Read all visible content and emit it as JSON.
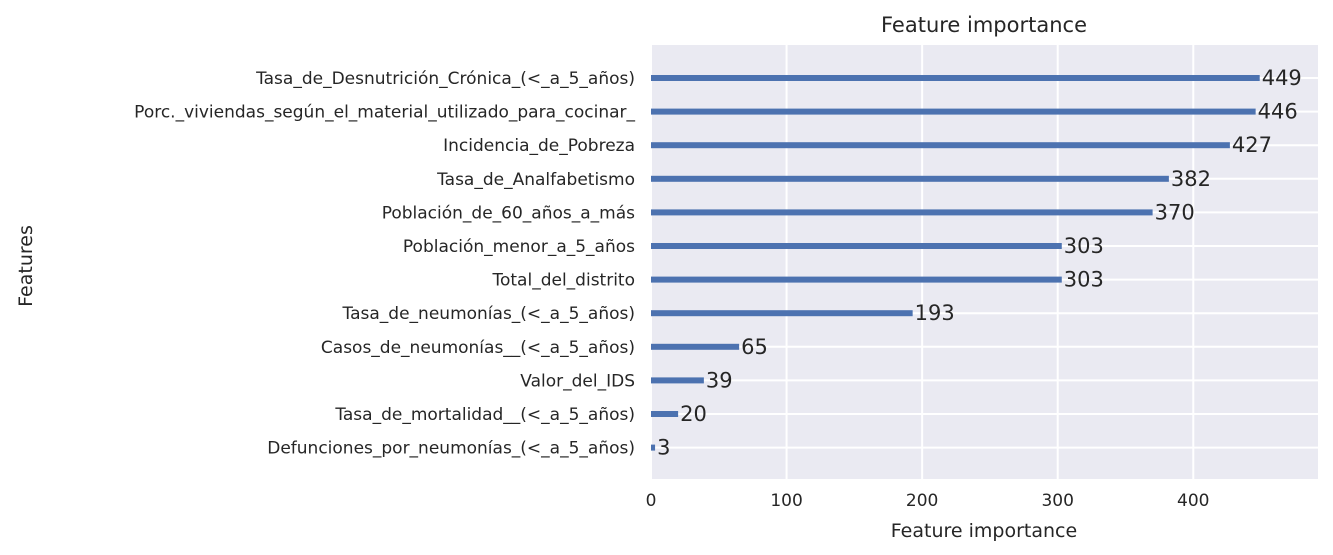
{
  "chart_data": {
    "type": "bar",
    "orientation": "horizontal",
    "title": "Feature importance",
    "xlabel": "Feature importance",
    "ylabel": "Features",
    "xlim": [
      0,
      492
    ],
    "xticks": [
      0,
      100,
      200,
      300,
      400
    ],
    "grid": true,
    "bar_color": "#4c72b0",
    "background_color": "#eaeaf2",
    "categories": [
      "Tasa_de_Desnutrición_Crónica_(<_a_5_años)",
      "Porc._viviendas_según_el_material_utilizado_para_cocinar_",
      "Incidencia_de_Pobreza",
      "Tasa_de_Analfabetismo",
      "Población_de_60_años_a_más",
      "Población_menor_a_5_años",
      "Total_del_distrito",
      "Tasa_de_neumonías_(<_a_5_años)",
      "Casos_de_neumonías__(<_a_5_años)",
      "Valor_del_IDS",
      "Tasa_de_mortalidad__(<_a_5_años)",
      "Defunciones_por_neumonías_(<_a_5_años)"
    ],
    "values": [
      449,
      446,
      427,
      382,
      370,
      303,
      303,
      193,
      65,
      39,
      20,
      3
    ]
  }
}
